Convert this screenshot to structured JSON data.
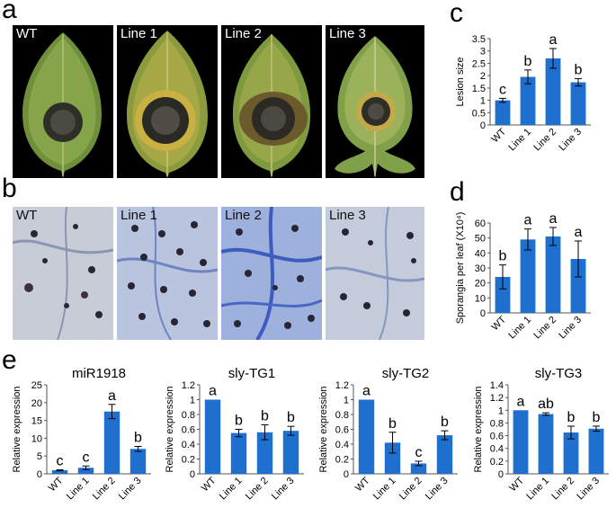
{
  "panels": {
    "a": "a",
    "b": "b",
    "c": "c",
    "d": "d",
    "e": "e"
  },
  "leaf_labels": [
    "WT",
    "Line 1",
    "Line 2",
    "Line 3"
  ],
  "micro_labels": [
    "WT",
    "Line 1",
    "Line 2",
    "Line 3"
  ],
  "colors": {
    "bar": "#1f6fce",
    "leaf_green": "#7a9a3a",
    "lesion": "#3c3a30",
    "micro_bg": "#c9d2e2",
    "spore": "#2a2535"
  },
  "chart_data": [
    {
      "id": "c",
      "type": "bar",
      "categories": [
        "WT",
        "Line 1",
        "Line 2",
        "Line 3"
      ],
      "values": [
        1.0,
        1.95,
        2.7,
        1.73
      ],
      "errors": [
        0.08,
        0.28,
        0.4,
        0.15
      ],
      "letters": [
        "c",
        "b",
        "a",
        "b"
      ],
      "ylabel": "Lesion size",
      "ylim": [
        0,
        3.5
      ],
      "yticks": [
        "0",
        "0.5",
        "1",
        "1.5",
        "2",
        "2.5",
        "3",
        "3.5"
      ]
    },
    {
      "id": "d",
      "type": "bar",
      "categories": [
        "WT",
        "Line 1",
        "Line 2",
        "Line 3"
      ],
      "values": [
        24,
        49,
        51,
        36
      ],
      "errors": [
        8,
        7,
        6,
        12
      ],
      "letters": [
        "b",
        "a",
        "a",
        "a"
      ],
      "ylabel": "Sporangia per leaf (X10⁴)",
      "ylim": [
        0,
        60
      ],
      "yticks": [
        "0",
        "10",
        "20",
        "30",
        "40",
        "50",
        "60"
      ]
    },
    {
      "id": "e1",
      "type": "bar",
      "title": "miR1918",
      "categories": [
        "WT",
        "Line 1",
        "Line 2",
        "Line 3"
      ],
      "values": [
        1.0,
        1.7,
        17.5,
        7.0
      ],
      "errors": [
        0.15,
        0.5,
        2.0,
        0.7
      ],
      "letters": [
        "c",
        "c",
        "a",
        "b"
      ],
      "ylabel": "Relative expression",
      "ylim": [
        0,
        25
      ],
      "yticks": [
        "0",
        "5",
        "10",
        "15",
        "20",
        "25"
      ]
    },
    {
      "id": "e2",
      "type": "bar",
      "title": "sly-TG1",
      "categories": [
        "WT",
        "Line 1",
        "Line 2",
        "Line 3"
      ],
      "values": [
        1.0,
        0.55,
        0.56,
        0.58
      ],
      "errors": [
        0.0,
        0.05,
        0.1,
        0.06
      ],
      "letters": [
        "a",
        "b",
        "b",
        "b"
      ],
      "ylabel": "Relative expression",
      "ylim": [
        0,
        1.2
      ],
      "yticks": [
        "0",
        "0.2",
        "0.4",
        "0.6",
        "0.8",
        "1",
        "1.2"
      ]
    },
    {
      "id": "e3",
      "type": "bar",
      "title": "sly-TG2",
      "categories": [
        "WT",
        "Line 1",
        "Line 2",
        "Line 3"
      ],
      "values": [
        1.0,
        0.42,
        0.14,
        0.52
      ],
      "errors": [
        0.0,
        0.14,
        0.03,
        0.06
      ],
      "letters": [
        "a",
        "b",
        "c",
        "b"
      ],
      "ylabel": "Relative expression",
      "ylim": [
        0,
        1.2
      ],
      "yticks": [
        "0",
        "0.2",
        "0.4",
        "0.6",
        "0.8",
        "1",
        "1.2"
      ]
    },
    {
      "id": "e4",
      "type": "bar",
      "title": "sly-TG3",
      "categories": [
        "WT",
        "Line 1",
        "Line 2",
        "Line 3"
      ],
      "values": [
        1.0,
        0.94,
        0.65,
        0.71
      ],
      "errors": [
        0.0,
        0.02,
        0.1,
        0.04
      ],
      "letters": [
        "a",
        "ab",
        "b",
        "b"
      ],
      "ylabel": "Relative expression",
      "ylim": [
        0,
        1.4
      ],
      "yticks": [
        "0",
        "0.2",
        "0.4",
        "0.6",
        "0.8",
        "1",
        "1.2",
        "1.4"
      ]
    }
  ]
}
